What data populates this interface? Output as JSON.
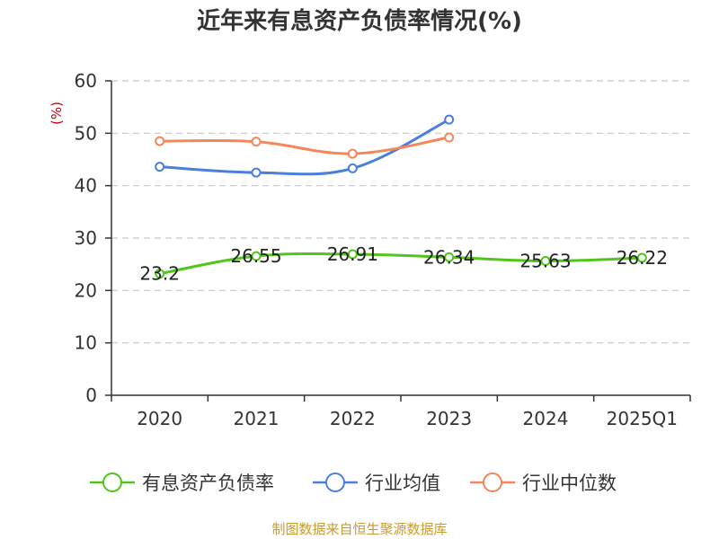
{
  "chart_data": {
    "type": "line",
    "title": "近年来有息资产负债率情况(%)",
    "y_unit": "(%)",
    "categories": [
      "2020",
      "2021",
      "2022",
      "2023",
      "2024",
      "2025Q1"
    ],
    "ylim": [
      0,
      60
    ],
    "yticks": [
      0,
      10,
      20,
      30,
      40,
      50,
      60
    ],
    "grid": true,
    "legend_position": "bottom",
    "series": [
      {
        "name": "有息资产负债率",
        "color": "#52c41a",
        "values": [
          23.2,
          26.55,
          26.91,
          26.34,
          25.63,
          26.22
        ],
        "labels": [
          "23.2",
          "26.55",
          "26.91",
          "26.34",
          "25.63",
          "26.22"
        ]
      },
      {
        "name": "行业均值",
        "color": "#4a7fdd",
        "values": [
          43.6,
          42.5,
          43.3,
          52.6,
          null,
          null
        ]
      },
      {
        "name": "行业中位数",
        "color": "#f4875a",
        "values": [
          48.5,
          48.4,
          46.1,
          49.2,
          null,
          null
        ]
      }
    ]
  },
  "footer": {
    "source": "制图数据来自恒生聚源数据库",
    "source_color": "#c99a2e"
  },
  "colors": {
    "axis": "#333333",
    "grid": "#c8c8c8",
    "unit": "#cc0000"
  }
}
